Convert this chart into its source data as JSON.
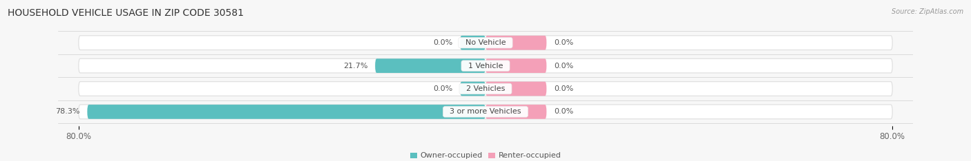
{
  "title": "HOUSEHOLD VEHICLE USAGE IN ZIP CODE 30581",
  "source": "Source: ZipAtlas.com",
  "categories": [
    "No Vehicle",
    "1 Vehicle",
    "2 Vehicles",
    "3 or more Vehicles"
  ],
  "owner_values": [
    0.0,
    21.7,
    0.0,
    78.3
  ],
  "renter_values": [
    0.0,
    0.0,
    0.0,
    0.0
  ],
  "owner_color": "#5bbfbf",
  "renter_color": "#f4a0b8",
  "bar_bg_color": "#f0f0f0",
  "bar_separator_color": "#e0e0e0",
  "x_min": -80.0,
  "x_max": 80.0,
  "x_tick_labels": [
    "80.0%",
    "80.0%"
  ],
  "background_color": "#f7f7f7",
  "title_fontsize": 10,
  "label_fontsize": 8,
  "category_fontsize": 8,
  "legend_fontsize": 8,
  "min_stub": 5.0,
  "renter_default_stub": 12.0,
  "owner_default_stub": 5.0
}
